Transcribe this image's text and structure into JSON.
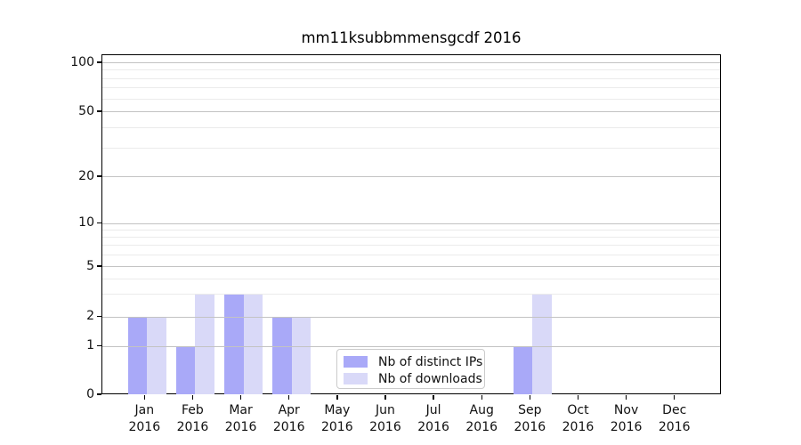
{
  "chart_data": {
    "type": "bar",
    "title": "mm11ksubbmmensgcdf 2016",
    "categories": [
      "Jan",
      "Feb",
      "Mar",
      "Apr",
      "May",
      "Jun",
      "Jul",
      "Aug",
      "Sep",
      "Oct",
      "Nov",
      "Dec"
    ],
    "x_year_label": "2016",
    "series": [
      {
        "name": "Nb of distinct IPs",
        "color": "#a9a9f8",
        "values": [
          2,
          1,
          3,
          2,
          0,
          0,
          0,
          0,
          1,
          0,
          0,
          0
        ]
      },
      {
        "name": "Nb of downloads",
        "color": "#d9d9f8",
        "values": [
          2,
          3,
          3,
          2,
          0,
          0,
          0,
          0,
          3,
          0,
          0,
          0
        ]
      }
    ],
    "y_axis": {
      "scale": "log-like (symlog)",
      "tick_labels": [
        "100",
        "50",
        "20",
        "10",
        "5",
        "2",
        "1",
        "0"
      ],
      "tick_values": [
        100,
        50,
        20,
        10,
        5,
        2,
        1,
        0
      ],
      "minor_tick_values": [
        90,
        80,
        70,
        60,
        40,
        30,
        9,
        8,
        7,
        6,
        4,
        3
      ],
      "range": [
        0,
        100
      ]
    },
    "legend": {
      "position": "lower center",
      "entries": [
        "Nb of distinct IPs",
        "Nb of downloads"
      ]
    },
    "grid": {
      "major_color": "#c3c3c3",
      "minor_color": "#ebebeb",
      "grid_on": true
    },
    "colors": {
      "background": "#ffffff",
      "spine": "#000000",
      "text": "#111111"
    }
  }
}
